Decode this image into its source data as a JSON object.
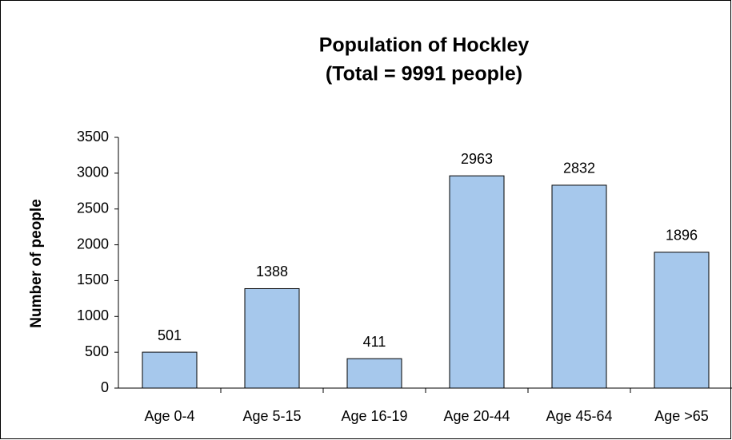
{
  "chart_data": {
    "type": "bar",
    "title": "Population of Hockley",
    "subtitle": "(Total = 9991 people)",
    "y_label": "Number of people",
    "categories": [
      "Age 0-4",
      "Age 5-15",
      "Age 16-19",
      "Age 20-44",
      "Age 45-64",
      "Age >65"
    ],
    "values": [
      501,
      1388,
      411,
      2963,
      2832,
      1896
    ],
    "color": "#a6c8ec",
    "ylim": [
      0,
      3500
    ],
    "yticks": [
      0,
      500,
      1000,
      1500,
      2000,
      2500,
      3000,
      3500
    ],
    "grid": false
  }
}
